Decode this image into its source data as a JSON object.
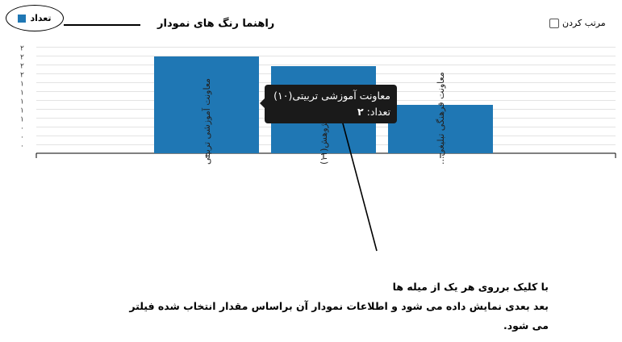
{
  "legend": {
    "series_label": "تعداد",
    "series_color": "#1f77b4",
    "title": "راهنما رنگ های نمودار"
  },
  "sort": {
    "label": "مرتب کردن",
    "checked": false
  },
  "tooltip": {
    "title": "معاونت آموزشی تربیتی(۱۰)",
    "count_label": "تعداد:",
    "count_value": "۲"
  },
  "callout": {
    "line1": "با کلیک برروی هر یک از میله ها",
    "line2": "بعد بعدی نمایش داده می شود و اطلاعات نمودار آن براساس مقدار انتخاب شده فیلتر می شود."
  },
  "chart_data": {
    "type": "bar",
    "categories": [
      "معاونت آموزشی تربیتی",
      "معاونت پژوهش(۱۱)",
      "معاونت فرهنگی تبلیغی..."
    ],
    "series": [
      {
        "name": "تعداد",
        "values": [
          2,
          1.8,
          1
        ],
        "color": "#1f77b4"
      }
    ],
    "y_ticks": [
      "۰",
      "۰",
      "۰",
      "۱",
      "۱",
      "۱",
      "۱",
      "۱",
      "۲",
      "۲",
      "۲",
      "۲"
    ],
    "ylim": [
      0,
      2.2
    ],
    "grid": true
  }
}
